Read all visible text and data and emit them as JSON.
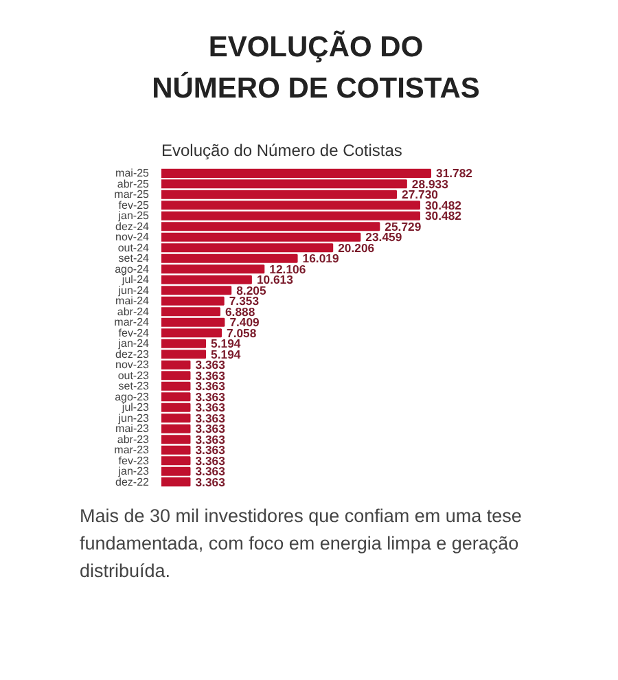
{
  "chart_data": {
    "type": "bar",
    "orientation": "horizontal",
    "title": "EVOLUÇÃO DO\nNÚMERO DE COTISTAS",
    "subtitle": "Evolução do Número de Cotistas",
    "categories": [
      "mai-25",
      "abr-25",
      "mar-25",
      "fev-25",
      "jan-25",
      "dez-24",
      "nov-24",
      "out-24",
      "set-24",
      "ago-24",
      "jul-24",
      "jun-24",
      "mai-24",
      "abr-24",
      "mar-24",
      "fev-24",
      "jan-24",
      "dez-23",
      "nov-23",
      "out-23",
      "set-23",
      "ago-23",
      "jul-23",
      "jun-23",
      "mai-23",
      "abr-23",
      "mar-23",
      "fev-23",
      "jan-23",
      "dez-22"
    ],
    "values": [
      31782,
      28933,
      27730,
      30482,
      30482,
      25729,
      23459,
      20206,
      16019,
      12106,
      10613,
      8205,
      7353,
      6888,
      7409,
      7058,
      5194,
      5194,
      3363,
      3363,
      3363,
      3363,
      3363,
      3363,
      3363,
      3363,
      3363,
      3363,
      3363,
      3363
    ],
    "value_labels": [
      "31.782",
      "28.933",
      "27.730",
      "30.482",
      "30.482",
      "25.729",
      "23.459",
      "20.206",
      "16.019",
      "12.106",
      "10.613",
      "8.205",
      "7.353",
      "6.888",
      "7.409",
      "7.058",
      "5.194",
      "5.194",
      "3.363",
      "3.363",
      "3.363",
      "3.363",
      "3.363",
      "3.363",
      "3.363",
      "3.363",
      "3.363",
      "3.363",
      "3.363",
      "3.363"
    ],
    "color": "#c0102e",
    "annotations": [
      "Mais de 30 mil investidores que confiam em uma tese fundamentada, com foco em energia limpa e geração distribuída."
    ]
  }
}
